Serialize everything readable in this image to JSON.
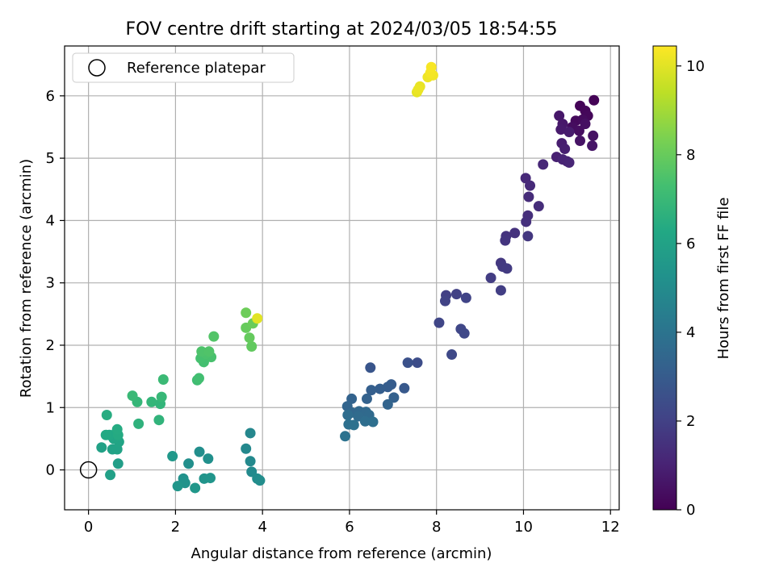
{
  "chart_data": {
    "type": "scatter",
    "title": "FOV centre drift starting at 2024/03/05 18:54:55",
    "xlabel": "Angular distance from reference (arcmin)",
    "ylabel": "Rotation from reference (arcmin)",
    "xlim": [
      -0.55,
      12.2
    ],
    "ylim": [
      -0.64,
      6.8
    ],
    "xticks": [
      0,
      2,
      4,
      6,
      8,
      10,
      12
    ],
    "yticks": [
      0,
      1,
      2,
      3,
      4,
      5,
      6
    ],
    "grid": true,
    "legend": {
      "location": "upper-left",
      "entries": [
        "Reference platepar"
      ]
    },
    "reference_point": {
      "x": 0,
      "y": 0,
      "marker": "open-circle"
    },
    "colorbar": {
      "label": "Hours from first FF file",
      "colormap": "viridis",
      "range": [
        0,
        10.45
      ],
      "ticks": [
        0,
        2,
        4,
        6,
        8,
        10
      ]
    },
    "points": [
      {
        "x": 11.62,
        "y": 5.93,
        "h": 0.05
      },
      {
        "x": 11.3,
        "y": 5.84,
        "h": 0.1
      },
      {
        "x": 11.42,
        "y": 5.76,
        "h": 0.15
      },
      {
        "x": 11.48,
        "y": 5.68,
        "h": 0.2
      },
      {
        "x": 11.2,
        "y": 5.6,
        "h": 0.25
      },
      {
        "x": 11.36,
        "y": 5.62,
        "h": 0.3
      },
      {
        "x": 11.12,
        "y": 5.5,
        "h": 0.35
      },
      {
        "x": 11.28,
        "y": 5.44,
        "h": 0.4
      },
      {
        "x": 11.42,
        "y": 5.55,
        "h": 0.45
      },
      {
        "x": 11.6,
        "y": 5.36,
        "h": 0.5
      },
      {
        "x": 11.3,
        "y": 5.28,
        "h": 0.55
      },
      {
        "x": 11.58,
        "y": 5.2,
        "h": 0.6
      },
      {
        "x": 10.82,
        "y": 5.68,
        "h": 0.65
      },
      {
        "x": 10.9,
        "y": 5.55,
        "h": 0.7
      },
      {
        "x": 10.86,
        "y": 5.46,
        "h": 0.75
      },
      {
        "x": 11.05,
        "y": 5.42,
        "h": 0.8
      },
      {
        "x": 10.88,
        "y": 5.24,
        "h": 0.85
      },
      {
        "x": 10.95,
        "y": 5.15,
        "h": 0.9
      },
      {
        "x": 10.76,
        "y": 5.02,
        "h": 0.95
      },
      {
        "x": 11.0,
        "y": 4.95,
        "h": 1.0
      },
      {
        "x": 10.9,
        "y": 4.98,
        "h": 1.05
      },
      {
        "x": 11.05,
        "y": 4.93,
        "h": 1.1
      },
      {
        "x": 10.45,
        "y": 4.9,
        "h": 1.15
      },
      {
        "x": 10.05,
        "y": 4.68,
        "h": 1.2
      },
      {
        "x": 10.15,
        "y": 4.56,
        "h": 1.25
      },
      {
        "x": 10.12,
        "y": 4.38,
        "h": 1.3
      },
      {
        "x": 10.35,
        "y": 4.23,
        "h": 1.35
      },
      {
        "x": 10.1,
        "y": 4.08,
        "h": 1.4
      },
      {
        "x": 10.06,
        "y": 3.98,
        "h": 1.45
      },
      {
        "x": 9.8,
        "y": 3.8,
        "h": 1.5
      },
      {
        "x": 9.6,
        "y": 3.75,
        "h": 1.55
      },
      {
        "x": 9.58,
        "y": 3.68,
        "h": 1.6
      },
      {
        "x": 10.1,
        "y": 3.75,
        "h": 1.65
      },
      {
        "x": 9.48,
        "y": 3.32,
        "h": 1.7
      },
      {
        "x": 9.52,
        "y": 3.26,
        "h": 1.75
      },
      {
        "x": 9.62,
        "y": 3.23,
        "h": 1.8
      },
      {
        "x": 9.25,
        "y": 3.08,
        "h": 1.85
      },
      {
        "x": 9.48,
        "y": 2.88,
        "h": 1.9
      },
      {
        "x": 8.22,
        "y": 2.8,
        "h": 1.95
      },
      {
        "x": 8.46,
        "y": 2.82,
        "h": 2.0
      },
      {
        "x": 8.2,
        "y": 2.71,
        "h": 2.05
      },
      {
        "x": 8.68,
        "y": 2.76,
        "h": 2.1
      },
      {
        "x": 8.06,
        "y": 2.36,
        "h": 2.15
      },
      {
        "x": 8.56,
        "y": 2.26,
        "h": 2.2
      },
      {
        "x": 8.64,
        "y": 2.19,
        "h": 2.25
      },
      {
        "x": 8.35,
        "y": 1.85,
        "h": 2.3
      },
      {
        "x": 7.56,
        "y": 1.72,
        "h": 2.45
      },
      {
        "x": 7.34,
        "y": 1.72,
        "h": 2.6
      },
      {
        "x": 6.48,
        "y": 1.64,
        "h": 2.75
      },
      {
        "x": 7.26,
        "y": 1.31,
        "h": 2.9
      },
      {
        "x": 6.96,
        "y": 1.37,
        "h": 3.0
      },
      {
        "x": 6.88,
        "y": 1.33,
        "h": 3.05
      },
      {
        "x": 6.7,
        "y": 1.3,
        "h": 3.1
      },
      {
        "x": 6.5,
        "y": 1.28,
        "h": 3.15
      },
      {
        "x": 7.02,
        "y": 1.16,
        "h": 3.2
      },
      {
        "x": 6.4,
        "y": 1.14,
        "h": 3.25
      },
      {
        "x": 6.05,
        "y": 1.14,
        "h": 3.3
      },
      {
        "x": 6.88,
        "y": 1.05,
        "h": 3.35
      },
      {
        "x": 5.95,
        "y": 1.02,
        "h": 3.4
      },
      {
        "x": 6.05,
        "y": 0.92,
        "h": 3.45
      },
      {
        "x": 6.22,
        "y": 0.94,
        "h": 3.5
      },
      {
        "x": 6.38,
        "y": 0.93,
        "h": 3.55
      },
      {
        "x": 6.45,
        "y": 0.88,
        "h": 3.6
      },
      {
        "x": 6.2,
        "y": 0.86,
        "h": 3.65
      },
      {
        "x": 5.96,
        "y": 0.88,
        "h": 3.7
      },
      {
        "x": 6.36,
        "y": 0.78,
        "h": 3.75
      },
      {
        "x": 6.54,
        "y": 0.77,
        "h": 3.8
      },
      {
        "x": 5.98,
        "y": 0.73,
        "h": 3.85
      },
      {
        "x": 6.1,
        "y": 0.72,
        "h": 3.9
      },
      {
        "x": 5.9,
        "y": 0.54,
        "h": 3.95
      },
      {
        "x": 3.72,
        "y": 0.59,
        "h": 4.8
      },
      {
        "x": 3.62,
        "y": 0.34,
        "h": 4.85
      },
      {
        "x": 3.72,
        "y": 0.14,
        "h": 4.9
      },
      {
        "x": 3.75,
        "y": -0.03,
        "h": 4.95
      },
      {
        "x": 3.88,
        "y": -0.14,
        "h": 5.0
      },
      {
        "x": 3.94,
        "y": -0.17,
        "h": 5.05
      },
      {
        "x": 2.55,
        "y": 0.29,
        "h": 5.1
      },
      {
        "x": 2.3,
        "y": 0.1,
        "h": 5.15
      },
      {
        "x": 2.75,
        "y": 0.18,
        "h": 5.2
      },
      {
        "x": 2.18,
        "y": -0.14,
        "h": 5.25
      },
      {
        "x": 2.22,
        "y": -0.21,
        "h": 5.3
      },
      {
        "x": 2.66,
        "y": -0.14,
        "h": 5.35
      },
      {
        "x": 2.8,
        "y": -0.13,
        "h": 5.4
      },
      {
        "x": 2.05,
        "y": -0.26,
        "h": 5.45
      },
      {
        "x": 2.45,
        "y": -0.29,
        "h": 5.5
      },
      {
        "x": 1.93,
        "y": 0.22,
        "h": 5.55
      },
      {
        "x": 0.68,
        "y": 0.1,
        "h": 5.8
      },
      {
        "x": 0.5,
        "y": -0.08,
        "h": 5.9
      },
      {
        "x": 0.3,
        "y": 0.36,
        "h": 5.95
      },
      {
        "x": 0.55,
        "y": 0.33,
        "h": 6.0
      },
      {
        "x": 0.66,
        "y": 0.33,
        "h": 6.05
      },
      {
        "x": 0.7,
        "y": 0.45,
        "h": 6.1
      },
      {
        "x": 0.58,
        "y": 0.5,
        "h": 6.15
      },
      {
        "x": 0.62,
        "y": 0.58,
        "h": 6.2
      },
      {
        "x": 0.48,
        "y": 0.56,
        "h": 6.25
      },
      {
        "x": 0.4,
        "y": 0.56,
        "h": 6.3
      },
      {
        "x": 0.68,
        "y": 0.56,
        "h": 6.35
      },
      {
        "x": 0.66,
        "y": 0.65,
        "h": 6.4
      },
      {
        "x": 0.42,
        "y": 0.88,
        "h": 6.45
      },
      {
        "x": 1.15,
        "y": 0.74,
        "h": 6.7
      },
      {
        "x": 1.62,
        "y": 0.8,
        "h": 6.75
      },
      {
        "x": 1.65,
        "y": 1.06,
        "h": 6.8
      },
      {
        "x": 1.45,
        "y": 1.09,
        "h": 6.85
      },
      {
        "x": 1.12,
        "y": 1.09,
        "h": 6.9
      },
      {
        "x": 1.68,
        "y": 1.17,
        "h": 6.95
      },
      {
        "x": 1.01,
        "y": 1.19,
        "h": 7.0
      },
      {
        "x": 1.72,
        "y": 1.45,
        "h": 7.05
      },
      {
        "x": 2.5,
        "y": 1.44,
        "h": 7.2
      },
      {
        "x": 2.54,
        "y": 1.47,
        "h": 7.25
      },
      {
        "x": 2.65,
        "y": 1.73,
        "h": 7.3
      },
      {
        "x": 2.58,
        "y": 1.79,
        "h": 7.35
      },
      {
        "x": 2.82,
        "y": 1.81,
        "h": 7.4
      },
      {
        "x": 2.7,
        "y": 1.86,
        "h": 7.45
      },
      {
        "x": 2.6,
        "y": 1.9,
        "h": 7.5
      },
      {
        "x": 2.77,
        "y": 1.9,
        "h": 7.55
      },
      {
        "x": 2.88,
        "y": 2.14,
        "h": 7.6
      },
      {
        "x": 3.75,
        "y": 1.98,
        "h": 7.9
      },
      {
        "x": 3.7,
        "y": 2.12,
        "h": 7.95
      },
      {
        "x": 3.62,
        "y": 2.28,
        "h": 8.0
      },
      {
        "x": 3.78,
        "y": 2.35,
        "h": 8.05
      },
      {
        "x": 3.62,
        "y": 2.52,
        "h": 8.1
      },
      {
        "x": 3.88,
        "y": 2.43,
        "h": 10.0
      },
      {
        "x": 7.55,
        "y": 6.06,
        "h": 10.05
      },
      {
        "x": 7.62,
        "y": 6.15,
        "h": 10.1
      },
      {
        "x": 7.58,
        "y": 6.1,
        "h": 10.15
      },
      {
        "x": 7.8,
        "y": 6.3,
        "h": 10.2
      },
      {
        "x": 7.92,
        "y": 6.33,
        "h": 10.25
      },
      {
        "x": 7.86,
        "y": 6.37,
        "h": 10.3
      },
      {
        "x": 7.88,
        "y": 6.46,
        "h": 10.35
      }
    ]
  }
}
